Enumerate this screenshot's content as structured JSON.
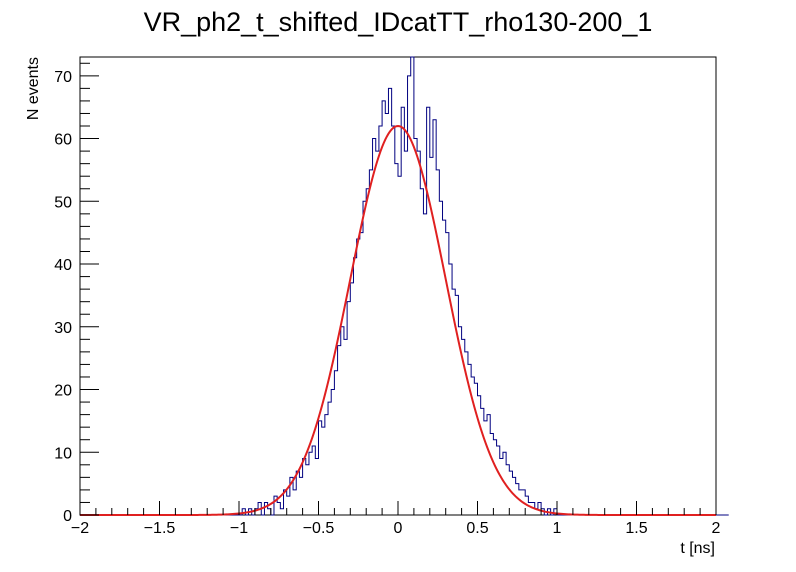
{
  "chart_data": {
    "type": "histogram",
    "title": "VR_ph2_t_shifted_IDcatTT_rho130-200_1",
    "xlabel": "t [ns]",
    "ylabel": "N events",
    "xlim": [
      -2,
      2
    ],
    "ylim": [
      0,
      73
    ],
    "x_ticks": [
      -2,
      -1.5,
      -1,
      -0.5,
      0,
      0.5,
      1,
      1.5,
      2
    ],
    "x_tick_labels": [
      "−2",
      "−1.5",
      "−1",
      "−0.5",
      "0",
      "0.5",
      "1",
      "1.5",
      "2"
    ],
    "y_ticks": [
      0,
      10,
      20,
      30,
      40,
      50,
      60,
      70
    ],
    "y_tick_labels": [
      "0",
      "10",
      "20",
      "30",
      "40",
      "50",
      "60",
      "70"
    ],
    "bin_edges": [
      -2,
      2
    ],
    "bin_width": 0.02,
    "bin_counts": [
      0,
      0,
      0,
      0,
      0,
      0,
      0,
      0,
      0,
      0,
      0,
      0,
      0,
      0,
      0,
      0,
      0,
      0,
      0,
      0,
      0,
      0,
      0,
      0,
      0,
      0,
      0,
      0,
      0,
      0,
      0,
      0,
      0,
      0,
      0,
      0,
      0,
      0,
      0,
      0,
      0,
      0,
      0,
      0,
      0,
      0,
      0,
      0,
      0,
      0,
      0,
      1,
      0,
      1,
      0,
      1,
      2,
      0,
      2,
      1,
      0,
      3,
      2,
      1,
      4,
      3,
      6,
      4,
      7,
      6,
      9,
      8,
      10,
      11,
      9,
      15,
      14,
      16,
      18,
      20,
      23,
      27,
      30,
      28,
      34,
      37,
      41,
      44,
      45,
      50,
      52,
      55,
      60,
      58,
      62,
      66,
      64,
      68,
      62,
      56,
      54,
      65,
      58,
      70,
      73,
      60,
      58,
      52,
      48,
      65,
      57,
      63,
      55,
      50,
      47,
      45,
      40,
      36,
      35,
      30,
      28,
      26,
      24,
      22,
      21,
      19,
      17,
      15,
      16,
      13,
      12,
      11,
      9,
      10,
      8,
      7,
      6,
      5,
      4,
      4,
      3,
      2,
      2,
      1,
      2,
      1,
      0,
      1,
      0,
      1,
      0,
      0,
      0,
      0,
      0,
      0,
      0,
      0,
      0,
      0,
      0,
      0,
      0,
      0,
      0,
      0,
      0,
      0,
      0,
      0,
      0,
      0,
      0,
      0,
      0,
      0,
      0,
      0,
      0,
      0,
      0,
      0,
      0,
      0,
      0,
      0,
      0,
      0,
      0,
      0,
      0,
      0,
      0,
      0,
      0,
      0,
      0,
      0,
      0,
      0,
      0,
      0,
      0,
      0
    ],
    "fit": {
      "type": "gaussian",
      "amplitude": 62,
      "mean": 0.0,
      "sigma": 0.3
    },
    "grid": false,
    "legend": "none",
    "colors": {
      "histogram": "#000080",
      "fit": "#e02020",
      "axes": "#000000",
      "background": "#ffffff"
    }
  }
}
